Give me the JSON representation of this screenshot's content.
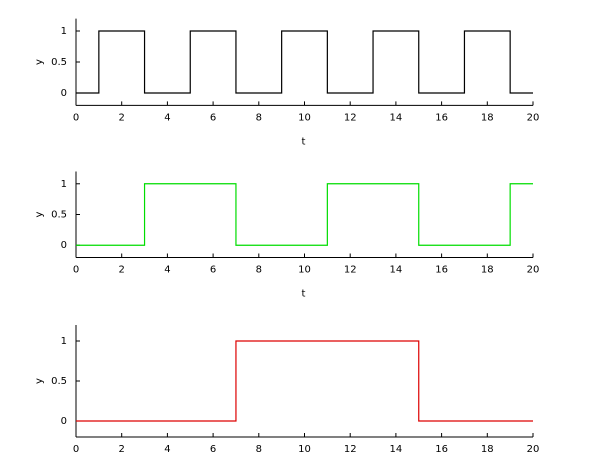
{
  "chart_data": [
    {
      "type": "line",
      "xlabel": "t",
      "ylabel": "y",
      "x": [
        0,
        1,
        1,
        3,
        3,
        5,
        5,
        7,
        7,
        9,
        9,
        11,
        11,
        13,
        13,
        15,
        15,
        17,
        17,
        19,
        19,
        20
      ],
      "series": [
        {
          "color": "#000000",
          "values": [
            0,
            0,
            1,
            1,
            0,
            0,
            1,
            1,
            0,
            0,
            1,
            1,
            0,
            0,
            1,
            1,
            0,
            0,
            1,
            1,
            0,
            0
          ]
        }
      ],
      "xlim": [
        0,
        20
      ],
      "xticks": [
        0,
        2,
        4,
        6,
        8,
        10,
        12,
        14,
        16,
        18,
        20
      ],
      "ylim": [
        -0.2,
        1.2
      ],
      "yticks": [
        0,
        0.5,
        1
      ]
    },
    {
      "type": "line",
      "xlabel": "t",
      "ylabel": "y",
      "x": [
        0,
        3,
        3,
        7,
        7,
        11,
        11,
        15,
        15,
        19,
        19,
        20
      ],
      "series": [
        {
          "color": "#00dd00",
          "values": [
            0,
            0,
            1,
            1,
            0,
            0,
            1,
            1,
            0,
            0,
            1,
            1
          ]
        }
      ],
      "xlim": [
        0,
        20
      ],
      "xticks": [
        0,
        2,
        4,
        6,
        8,
        10,
        12,
        14,
        16,
        18,
        20
      ],
      "ylim": [
        -0.2,
        1.2
      ],
      "yticks": [
        0,
        0.5,
        1
      ]
    },
    {
      "type": "line",
      "ylabel": "y",
      "x": [
        0,
        7,
        7,
        15,
        15,
        20
      ],
      "series": [
        {
          "color": "#dd0000",
          "values": [
            0,
            0,
            1,
            1,
            0,
            0
          ]
        }
      ],
      "xlim": [
        0,
        20
      ],
      "xticks": [
        0,
        2,
        4,
        6,
        8,
        10,
        12,
        14,
        16,
        18,
        20
      ],
      "ylim": [
        -0.2,
        1.2
      ],
      "yticks": [
        0,
        0.5,
        1
      ]
    }
  ]
}
